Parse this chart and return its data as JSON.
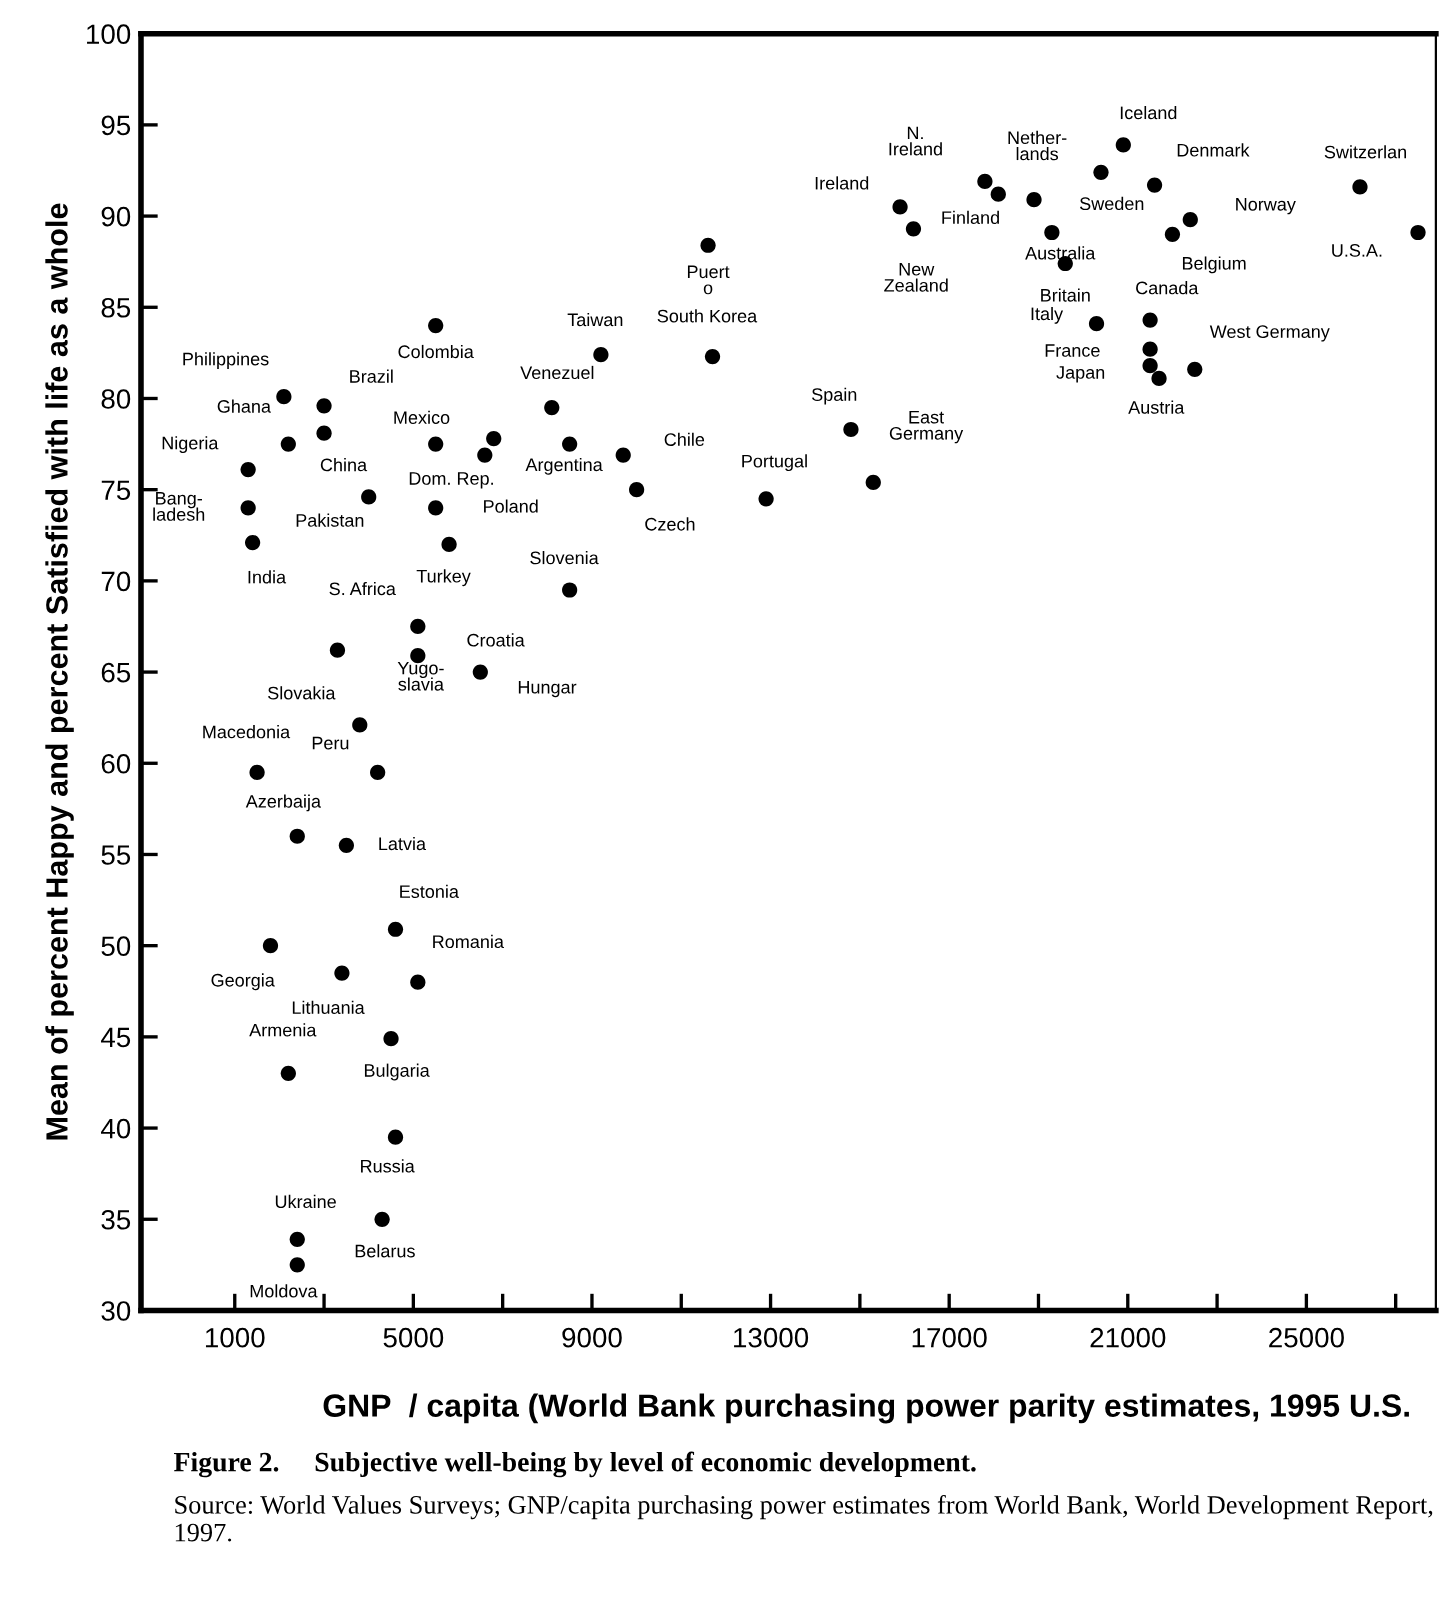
{
  "chart_data": {
    "type": "scatter",
    "xlabel": "GNP  / capita (World Bank purchasing power parity estimates, 1995 U.S.",
    "ylabel": "Mean of percent Happy and percent Satisfied with life as a whole",
    "xlim": [
      -1100,
      27900
    ],
    "ylim": [
      30,
      100
    ],
    "xticks": [
      1000,
      {
        "value": 3000,
        "label": null
      },
      5000,
      {
        "value": 7000,
        "label": null
      },
      9000,
      {
        "value": 11000,
        "label": null
      },
      13000,
      {
        "value": 15000,
        "label": null
      },
      17000,
      {
        "value": 19000,
        "label": null
      },
      21000,
      {
        "value": 23000,
        "label": null
      },
      25000,
      {
        "value": 27000,
        "label": null
      }
    ],
    "yticks": [
      30,
      35,
      40,
      45,
      50,
      55,
      60,
      65,
      70,
      75,
      80,
      85,
      90,
      95,
      100
    ],
    "grid": false,
    "marker": "circle",
    "series": [
      {
        "color": "#000000",
        "x": [
          2100,
          3000,
          2200,
          3000,
          1300,
          1300,
          1400,
          4000,
          5500,
          6800,
          6600,
          5500,
          5500,
          5800,
          8100,
          8500,
          9700,
          10000,
          8500,
          9200,
          11700,
          11600,
          5100,
          5100,
          3300,
          3800,
          6500,
          1500,
          4200,
          2400,
          3500,
          4600,
          1800,
          3400,
          5100,
          4500,
          2200,
          4600,
          4300,
          2400,
          2400,
          12900,
          14800,
          15300,
          15900,
          16200,
          17800,
          18100,
          18900,
          19300,
          19600,
          20400,
          20900,
          21600,
          22400,
          22000,
          20300,
          21500,
          21500,
          21500,
          21700,
          22500,
          26200,
          27500
        ],
        "values": [
          80.1,
          79.6,
          77.5,
          78.1,
          76.1,
          74.0,
          72.1,
          74.6,
          84.0,
          77.8,
          76.9,
          74.0,
          77.5,
          72.0,
          79.5,
          77.5,
          76.9,
          75.0,
          69.5,
          82.4,
          82.3,
          88.4,
          67.5,
          65.9,
          66.2,
          62.1,
          65.0,
          59.5,
          59.5,
          56.0,
          55.5,
          50.9,
          50.0,
          48.5,
          48.0,
          44.9,
          43.0,
          39.5,
          35.0,
          33.9,
          32.5,
          74.5,
          78.3,
          75.4,
          90.5,
          89.3,
          91.9,
          91.2,
          90.9,
          89.1,
          87.4,
          92.4,
          93.9,
          91.7,
          89.8,
          89.0,
          84.1,
          84.3,
          82.7,
          81.8,
          81.1,
          81.6,
          91.6,
          89.1
        ]
      }
    ],
    "annotations": [
      {
        "text": "Philippines",
        "x": 2100,
        "y": 80.1
      },
      {
        "text": "Brazil",
        "x": 3000,
        "y": 79.6
      },
      {
        "text": "Ghana",
        "x": 2200,
        "y": 77.5
      },
      {
        "text": "China",
        "x": 3000,
        "y": 78.1
      },
      {
        "text": "Nigeria",
        "x": 1300,
        "y": 76.1
      },
      {
        "text": "Bang-\nladesh",
        "x": 1300,
        "y": 74.0
      },
      {
        "text": "India",
        "x": 1400,
        "y": 72.1
      },
      {
        "text": "Pakistan",
        "x": 4000,
        "y": 74.6
      },
      {
        "text": "Colombia",
        "x": 5500,
        "y": 84.0
      },
      {
        "text": "Mexico",
        "x": 6800,
        "y": 77.8
      },
      {
        "text": "Dom. Rep.",
        "x": 6600,
        "y": 76.9
      },
      {
        "text": "Poland",
        "x": 5500,
        "y": 74.0
      },
      {
        "text": "Turkey",
        "x": 5800,
        "y": 72.0
      },
      {
        "text": "Venezuel",
        "x": 8100,
        "y": 79.5
      },
      {
        "text": "Argentina",
        "x": 8500,
        "y": 77.5
      },
      {
        "text": "Chile",
        "x": 9700,
        "y": 76.9
      },
      {
        "text": "Czech",
        "x": 10000,
        "y": 75.0
      },
      {
        "text": "Slovenia",
        "x": 8500,
        "y": 69.5
      },
      {
        "text": "Taiwan",
        "x": 9200,
        "y": 82.4
      },
      {
        "text": "South Korea",
        "x": 11700,
        "y": 82.3
      },
      {
        "text": "Puert\no",
        "x": 11600,
        "y": 88.4
      },
      {
        "text": "S. Africa",
        "x": 5100,
        "y": 67.5
      },
      {
        "text": "Croatia",
        "x": 5100,
        "y": 65.9
      },
      {
        "text": "Slovakia",
        "x": 3300,
        "y": 66.2
      },
      {
        "text": "Yugo-\nslavia",
        "x": 3800,
        "y": 62.1
      },
      {
        "text": "Hungar",
        "x": 6500,
        "y": 65.0
      },
      {
        "text": "Macedonia",
        "x": 1500,
        "y": 59.5
      },
      {
        "text": "Peru",
        "x": 4200,
        "y": 59.5
      },
      {
        "text": "Azerbaija",
        "x": 2400,
        "y": 56.0
      },
      {
        "text": "Latvia",
        "x": 3500,
        "y": 55.5
      },
      {
        "text": "Estonia",
        "x": 4600,
        "y": 50.9
      },
      {
        "text": "Georgia",
        "x": 1800,
        "y": 50.0
      },
      {
        "text": "Lithuania",
        "x": 3400,
        "y": 48.5
      },
      {
        "text": "Romania",
        "x": 5100,
        "y": 48.0
      },
      {
        "text": "Bulgaria",
        "x": 4500,
        "y": 44.9
      },
      {
        "text": "Armenia",
        "x": 2200,
        "y": 43.0
      },
      {
        "text": "Russia",
        "x": 4600,
        "y": 39.5
      },
      {
        "text": "Belarus",
        "x": 4300,
        "y": 35.0
      },
      {
        "text": "Ukraine",
        "x": 2400,
        "y": 33.9
      },
      {
        "text": "Moldova",
        "x": 2400,
        "y": 32.5
      },
      {
        "text": "Portugal",
        "x": 12900,
        "y": 74.5
      },
      {
        "text": "Spain",
        "x": 14800,
        "y": 78.3
      },
      {
        "text": "East\nGermany",
        "x": 15300,
        "y": 75.4
      },
      {
        "text": "Ireland",
        "x": 15900,
        "y": 90.5
      },
      {
        "text": "New\nZealand",
        "x": 16200,
        "y": 89.3
      },
      {
        "text": "N.\nIreland",
        "x": 17800,
        "y": 91.9
      },
      {
        "text": "Finland",
        "x": 18100,
        "y": 91.2
      },
      {
        "text": "Sweden",
        "x": 18900,
        "y": 90.9
      },
      {
        "text": "Australia",
        "x": 19300,
        "y": 89.1
      },
      {
        "text": "Britain",
        "x": 19600,
        "y": 87.4
      },
      {
        "text": "Nether-\nlands",
        "x": 20400,
        "y": 92.4
      },
      {
        "text": "Iceland",
        "x": 20900,
        "y": 93.9
      },
      {
        "text": "Denmark",
        "x": 21600,
        "y": 91.7
      },
      {
        "text": "Norway",
        "x": 22400,
        "y": 89.8
      },
      {
        "text": "Belgium",
        "x": 22000,
        "y": 89.0
      },
      {
        "text": "Italy",
        "x": 20300,
        "y": 84.1
      },
      {
        "text": "Canada",
        "x": 21500,
        "y": 84.3
      },
      {
        "text": "France",
        "x": 21500,
        "y": 82.7
      },
      {
        "text": "Japan",
        "x": 21500,
        "y": 81.8
      },
      {
        "text": "Austria",
        "x": 21700,
        "y": 81.1
      },
      {
        "text": "West Germany",
        "x": 22500,
        "y": 81.6
      },
      {
        "text": "Switzerlan",
        "x": 26200,
        "y": 91.6
      },
      {
        "text": "U.S.A.",
        "x": 27500,
        "y": 89.1
      },
      "Figure 2.     Subjective well-being by level of economic development.",
      "Source: World Values Surveys; GNP/capita purchasing power estimates from World Bank, World Development Report, 1997."
    ]
  }
}
